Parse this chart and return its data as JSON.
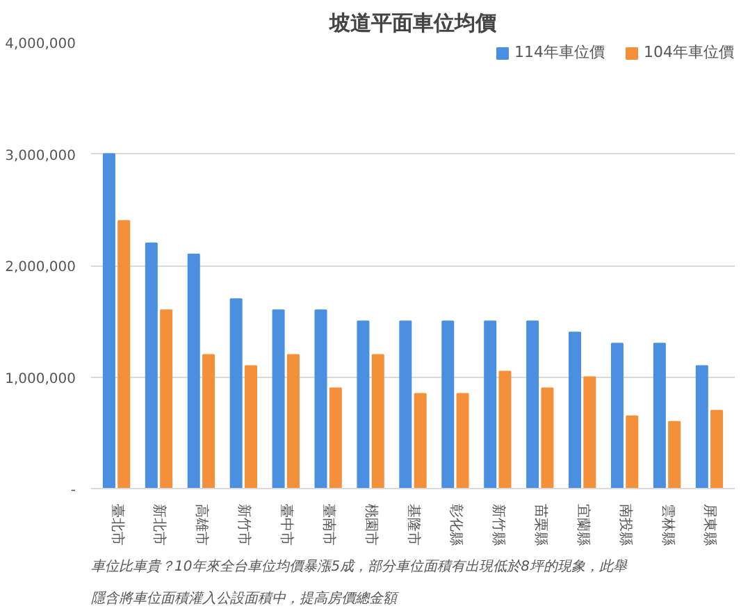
{
  "chart_data": {
    "type": "bar",
    "title": "坡道平面車位均價",
    "categories": [
      "臺北市",
      "新北市",
      "高雄市",
      "新竹市",
      "臺中市",
      "臺南市",
      "桃園市",
      "基隆市",
      "彰化縣",
      "新竹縣",
      "苗栗縣",
      "宜蘭縣",
      "南投縣",
      "雲林縣",
      "屏東縣"
    ],
    "series": [
      {
        "name": "114年車位價",
        "color": "#4a8fe0",
        "values": [
          3000000,
          2200000,
          2100000,
          1700000,
          1600000,
          1600000,
          1500000,
          1500000,
          1500000,
          1500000,
          1500000,
          1400000,
          1300000,
          1300000,
          1100000
        ]
      },
      {
        "name": "104年車位價",
        "color": "#f5903a",
        "values": [
          2400000,
          1600000,
          1200000,
          1100000,
          1200000,
          900000,
          1200000,
          850000,
          850000,
          1050000,
          900000,
          1000000,
          650000,
          600000,
          700000
        ]
      }
    ],
    "ylim": [
      0,
      4000000
    ],
    "yticks": [
      {
        "value": 0,
        "label": "-"
      },
      {
        "value": 1000000,
        "label": "1,000,000"
      },
      {
        "value": 2000000,
        "label": "2,000,000"
      },
      {
        "value": 3000000,
        "label": "3,000,000"
      },
      {
        "value": 4000000,
        "label": "4,000,000"
      }
    ],
    "grid": "y",
    "legend": "top right",
    "annotations": [
      "車位比車貴？10年來全台車位均價暴漲5成，部分車位面積有出現低於8坪的現象，此舉隱含將車位面積灌入公設面積中，提高房價總金額"
    ]
  }
}
